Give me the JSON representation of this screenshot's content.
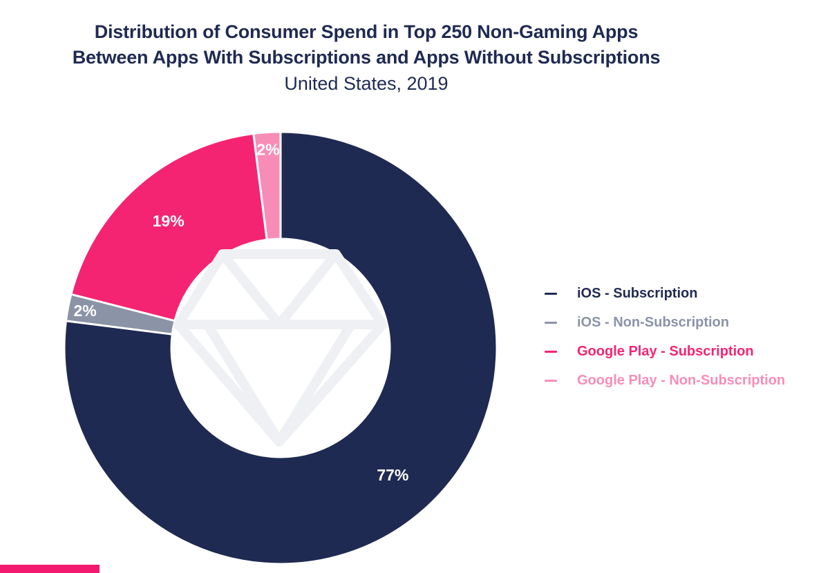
{
  "chart_data": {
    "type": "pie",
    "title_lines": [
      "Distribution of Consumer Spend in Top 250 Non-Gaming Apps",
      "Between Apps With Subscriptions and Apps Without Subscriptions"
    ],
    "subtitle": "United States, 2019",
    "legend_placement": "right",
    "donut": true,
    "slices": [
      {
        "name": "iOS - Subscription",
        "value": 77,
        "label": "77%",
        "color": "#1f2a52"
      },
      {
        "name": "iOS - Non-Subscription",
        "value": 2,
        "label": "2%",
        "color": "#8b93a7"
      },
      {
        "name": "Google Play - Subscription",
        "value": 19,
        "label": "19%",
        "color": "#f42473"
      },
      {
        "name": "Google Play - Non-Subscription",
        "value": 2,
        "label": "2%",
        "color": "#f78db7"
      }
    ],
    "legend": [
      {
        "label": "iOS - Subscription",
        "color": "#1f2a52"
      },
      {
        "label": "iOS - Non-Subscription",
        "color": "#8b93a7"
      },
      {
        "label": "Google Play - Subscription",
        "color": "#f42473"
      },
      {
        "label": "Google Play - Non-Subscription",
        "color": "#f78db7"
      }
    ]
  },
  "brand": {
    "accent": "#f2196e"
  }
}
